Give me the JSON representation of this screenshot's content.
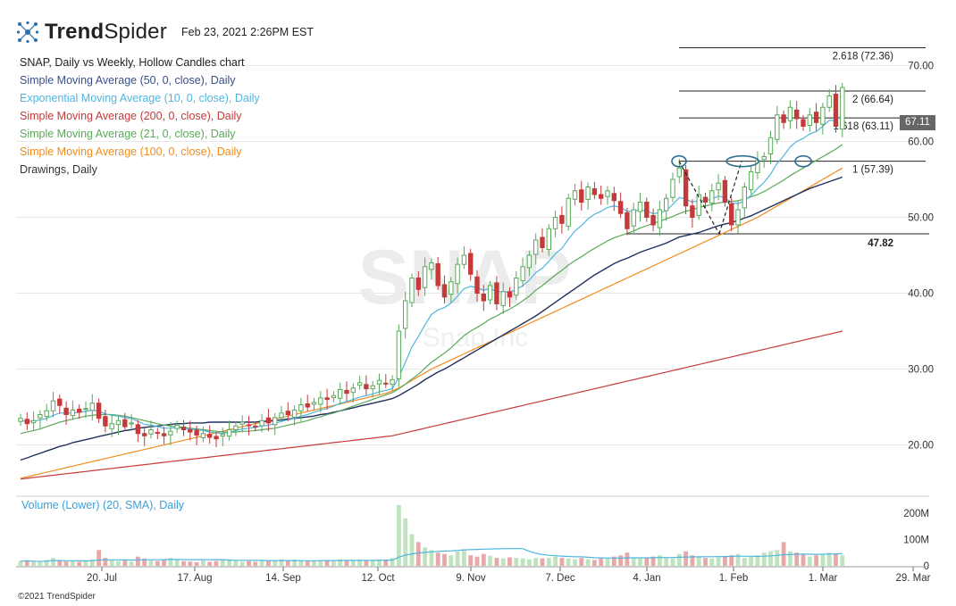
{
  "header": {
    "brand_bold": "Trend",
    "brand_light": "Spider",
    "timestamp": "Feb 23, 2021 2:26PM EST"
  },
  "legend": [
    {
      "text": "SNAP, Daily vs Weekly, Hollow Candles chart",
      "color": "#222222"
    },
    {
      "text": "Simple Moving Average (50, 0, close), Daily",
      "color": "#3a4f8a"
    },
    {
      "text": "Exponential Moving Average (10, 0, close), Daily",
      "color": "#4fb6e0"
    },
    {
      "text": "Simple Moving Average (200, 0, close), Daily",
      "color": "#c43a3a"
    },
    {
      "text": "Simple Moving Average (21, 0, close), Daily",
      "color": "#5aa85a"
    },
    {
      "text": "Simple Moving Average (100, 0, close), Daily",
      "color": "#f08c1e"
    },
    {
      "text": "Drawings, Daily",
      "color": "#333333"
    }
  ],
  "watermark": {
    "ticker": "SNAP",
    "name": "Snap Inc"
  },
  "volume_label": "Volume (Lower) (20, SMA), Daily",
  "copyright": "©2021 TrendSpider",
  "last_price": "67.11",
  "colors": {
    "up": "#5aa85a",
    "down": "#c43a3a",
    "sma50": "#1f2f5e",
    "ema10": "#4fb6e0",
    "sma200": "#c43a3a",
    "sma21": "#5aa85a",
    "sma100": "#f08c1e",
    "grid": "#e8e8e8"
  },
  "chart_data": {
    "type": "candlestick",
    "y_ticks": [
      "20.00",
      "30.00",
      "40.00",
      "50.00",
      "60.00",
      "70.00"
    ],
    "y_tick_values": [
      20,
      30,
      40,
      50,
      60,
      70
    ],
    "ylim": [
      15,
      75
    ],
    "x_ticks": [
      "20. Jul",
      "17. Aug",
      "14. Sep",
      "12. Oct",
      "9. Nov",
      "7. Dec",
      "4. Jan",
      "1. Feb",
      "1. Mar",
      "29. Mar"
    ],
    "volume_ticks": [
      "200M",
      "100M",
      "0"
    ],
    "volume_tick_values": [
      200,
      100,
      0
    ],
    "volume_ylim": [
      0,
      250
    ],
    "fib_levels": [
      {
        "label": "2.618 (72.36)",
        "value": 72.36
      },
      {
        "label": "2 (66.64)",
        "value": 66.64
      },
      {
        "label": "1.618 (63.11)",
        "value": 63.11
      },
      {
        "label": "1 (57.39)",
        "value": 57.39
      }
    ],
    "support_level": {
      "label": "47.82",
      "value": 47.82
    },
    "closes": [
      23.5,
      22.8,
      23.2,
      24.0,
      24.5,
      25.8,
      25.2,
      24.0,
      24.6,
      24.3,
      24.8,
      25.5,
      23.5,
      22.5,
      22.8,
      23.2,
      22.4,
      22.9,
      21.5,
      21.2,
      22.0,
      21.6,
      21.2,
      21.8,
      22.6,
      22.0,
      21.7,
      21.3,
      21.5,
      21.0,
      20.8,
      21.4,
      22.0,
      22.5,
      23.0,
      22.6,
      22.4,
      23.2,
      22.9,
      23.6,
      24.2,
      24.0,
      24.6,
      25.3,
      25.0,
      25.6,
      26.2,
      26.0,
      26.5,
      27.3,
      26.8,
      27.5,
      28.2,
      27.4,
      27.8,
      28.5,
      28.1,
      28.6,
      35.0,
      39.0,
      42.0,
      40.5,
      43.5,
      44.0,
      41.0,
      39.5,
      41.5,
      43.8,
      45.0,
      42.5,
      40.0,
      39.0,
      41.0,
      38.6,
      40.2,
      39.5,
      42.0,
      43.5,
      45.0,
      47.0,
      46.0,
      48.5,
      50.0,
      49.2,
      52.5,
      53.5,
      52.0,
      54.0,
      53.0,
      52.5,
      53.5,
      52.2,
      50.5,
      48.5,
      51.0,
      52.0,
      50.0,
      49.0,
      51.0,
      52.5,
      55.0,
      56.5,
      51.5,
      50.0,
      53.0,
      52.0,
      53.5,
      54.5,
      52.0,
      49.0,
      51.0,
      54.0,
      56.0,
      57.5,
      58.0,
      60.5,
      63.5,
      62.5,
      64.5,
      63.0,
      62.0,
      63.5,
      62.5,
      64.5,
      66.0,
      62.0,
      67.11
    ],
    "ema10": [
      23.2,
      23.1,
      23.1,
      23.3,
      23.5,
      23.9,
      24.2,
      24.2,
      24.2,
      24.3,
      24.4,
      24.6,
      24.4,
      24.1,
      23.9,
      23.8,
      23.6,
      23.5,
      23.1,
      22.7,
      22.6,
      22.4,
      22.2,
      22.2,
      22.3,
      22.2,
      22.1,
      22.0,
      21.9,
      21.7,
      21.6,
      21.5,
      21.7,
      21.9,
      22.1,
      22.2,
      22.3,
      22.5,
      22.6,
      22.8,
      23.1,
      23.3,
      23.5,
      23.8,
      24.0,
      24.3,
      24.6,
      24.8,
      25.1,
      25.5,
      25.7,
      26.0,
      26.3,
      26.5,
      26.7,
      27.0,
      27.2,
      27.4,
      28.9,
      30.9,
      32.9,
      34.3,
      35.8,
      37.2,
      37.8,
      38.1,
      38.7,
      39.6,
      40.6,
      40.9,
      40.7,
      40.4,
      40.6,
      40.2,
      40.2,
      40.1,
      40.5,
      41.0,
      41.7,
      42.7,
      43.3,
      44.2,
      45.2,
      45.9,
      47.1,
      48.2,
      48.9,
      49.8,
      50.4,
      50.8,
      51.3,
      51.5,
      51.3,
      50.8,
      50.8,
      51.0,
      50.8,
      50.5,
      50.6,
      50.9,
      51.7,
      52.6,
      52.4,
      52.0,
      52.2,
      52.2,
      52.4,
      52.8,
      52.6,
      51.9,
      51.8,
      52.2,
      52.9,
      53.8,
      54.6,
      55.7,
      57.1,
      58.1,
      59.3,
      60.0,
      60.4,
      61.0,
      61.3,
      62.0,
      62.8,
      62.7,
      63.6
    ],
    "sma21": [
      21.5,
      21.7,
      21.9,
      22.1,
      22.4,
      22.7,
      23.0,
      23.2,
      23.4,
      23.6,
      23.8,
      23.9,
      24.0,
      24.0,
      24.0,
      23.9,
      23.8,
      23.6,
      23.4,
      23.2,
      23.0,
      22.8,
      22.6,
      22.5,
      22.4,
      22.3,
      22.2,
      22.1,
      22.0,
      21.9,
      21.8,
      21.7,
      21.7,
      21.7,
      21.8,
      21.8,
      21.9,
      22.0,
      22.1,
      22.2,
      22.4,
      22.6,
      22.8,
      23.0,
      23.2,
      23.5,
      23.7,
      24.0,
      24.2,
      24.5,
      24.8,
      25.1,
      25.4,
      25.7,
      26.0,
      26.3,
      26.6,
      26.9,
      27.4,
      28.0,
      28.7,
      29.3,
      30.1,
      30.9,
      31.5,
      32.1,
      32.8,
      33.6,
      34.4,
      35.0,
      35.5,
      36.0,
      36.6,
      37.0,
      37.5,
      37.9,
      38.4,
      39.0,
      39.6,
      40.4,
      41.0,
      41.7,
      42.4,
      43.0,
      43.7,
      44.3,
      44.8,
      45.4,
      45.9,
      46.4,
      46.9,
      47.3,
      47.6,
      47.9,
      48.2,
      48.6,
      48.9,
      49.2,
      49.5,
      49.8,
      50.1,
      50.5,
      50.8,
      51.0,
      51.3,
      51.5,
      51.7,
      51.9,
      52.0,
      52.1,
      52.2,
      52.4,
      52.7,
      53.0,
      53.4,
      53.9,
      54.4,
      54.9,
      55.5,
      56.0,
      56.5,
      57.0,
      57.5,
      58.0,
      58.5,
      59.0,
      59.6
    ],
    "sma50": [
      18.0,
      18.3,
      18.6,
      18.9,
      19.2,
      19.5,
      19.8,
      20.0,
      20.3,
      20.5,
      20.7,
      20.9,
      21.1,
      21.3,
      21.5,
      21.7,
      21.9,
      22.0,
      22.2,
      22.3,
      22.4,
      22.5,
      22.6,
      22.7,
      22.8,
      22.8,
      22.9,
      22.9,
      22.9,
      23.0,
      23.0,
      23.0,
      23.0,
      23.0,
      23.0,
      23.0,
      23.0,
      23.1,
      23.1,
      23.2,
      23.3,
      23.4,
      23.5,
      23.6,
      23.7,
      23.8,
      24.0,
      24.1,
      24.3,
      24.5,
      24.7,
      24.9,
      25.1,
      25.3,
      25.5,
      25.7,
      25.9,
      26.1,
      26.5,
      27.0,
      27.5,
      28.0,
      28.6,
      29.1,
      29.6,
      30.0,
      30.5,
      31.0,
      31.5,
      32.0,
      32.5,
      33.0,
      33.5,
      34.0,
      34.5,
      35.0,
      35.5,
      36.0,
      36.5,
      37.0,
      37.6,
      38.2,
      38.8,
      39.4,
      40.0,
      40.6,
      41.2,
      41.8,
      42.4,
      42.9,
      43.4,
      43.9,
      44.3,
      44.6,
      45.0,
      45.4,
      45.7,
      46.0,
      46.3,
      46.6,
      47.0,
      47.4,
      47.6,
      47.8,
      48.0,
      48.3,
      48.6,
      48.9,
      49.1,
      49.3,
      49.6,
      49.9,
      50.2,
      50.6,
      51.0,
      51.4,
      51.8,
      52.2,
      52.6,
      53.0,
      53.4,
      53.8,
      54.1,
      54.4,
      54.7,
      55.0,
      55.3
    ],
    "sma100": [
      15.6,
      15.8,
      16.0,
      16.2,
      16.4,
      16.6,
      16.8,
      17.0,
      17.2,
      17.4,
      17.6,
      17.8,
      18.0,
      18.2,
      18.4,
      18.6,
      18.8,
      19.0,
      19.2,
      19.4,
      19.6,
      19.8,
      20.0,
      20.2,
      20.4,
      20.6,
      20.8,
      21.0,
      21.2,
      21.4,
      21.6,
      21.8,
      22.0,
      22.2,
      22.4,
      22.6,
      22.8,
      23.0,
      23.2,
      23.4,
      23.6,
      23.8,
      24.0,
      24.2,
      24.4,
      24.6,
      24.8,
      25.0,
      25.2,
      25.4,
      25.6,
      25.8,
      26.0,
      26.2,
      26.4,
      26.6,
      26.8,
      27.1,
      27.5,
      28.0,
      28.5,
      29.0,
      29.5,
      30.0,
      30.4,
      30.8,
      31.2,
      31.6,
      32.0,
      32.4,
      32.8,
      33.2,
      33.6,
      34.0,
      34.4,
      34.8,
      35.2,
      35.6,
      36.0,
      36.4,
      36.8,
      37.2,
      37.6,
      38.0,
      38.4,
      38.8,
      39.2,
      39.6,
      40.0,
      40.4,
      40.8,
      41.2,
      41.6,
      42.0,
      42.4,
      42.8,
      43.2,
      43.6,
      44.0,
      44.4,
      44.8,
      45.2,
      45.6,
      46.0,
      46.4,
      46.8,
      47.2,
      47.6,
      48.0,
      48.4,
      48.8,
      49.2,
      49.6,
      50.0,
      50.5,
      51.0,
      51.5,
      52.0,
      52.5,
      53.0,
      53.5,
      54.0,
      54.5,
      55.0,
      55.5,
      56.0,
      56.5
    ],
    "sma200": [
      15.5,
      15.6,
      15.7,
      15.8,
      15.9,
      16.0,
      16.1,
      16.2,
      16.3,
      16.4,
      16.5,
      16.6,
      16.7,
      16.8,
      16.9,
      17.0,
      17.1,
      17.2,
      17.3,
      17.4,
      17.5,
      17.6,
      17.7,
      17.8,
      17.9,
      18.0,
      18.1,
      18.2,
      18.3,
      18.4,
      18.5,
      18.6,
      18.7,
      18.8,
      18.9,
      19.0,
      19.1,
      19.2,
      19.3,
      19.4,
      19.5,
      19.6,
      19.7,
      19.8,
      19.9,
      20.0,
      20.1,
      20.2,
      20.3,
      20.4,
      20.5,
      20.6,
      20.7,
      20.8,
      20.9,
      21.0,
      21.1,
      21.2,
      21.4,
      21.6,
      21.8,
      22.0,
      22.2,
      22.4,
      22.6,
      22.8,
      23.0,
      23.2,
      23.4,
      23.6,
      23.8,
      24.0,
      24.2,
      24.4,
      24.6,
      24.8,
      25.0,
      25.2,
      25.4,
      25.6,
      25.8,
      26.0,
      26.2,
      26.4,
      26.6,
      26.8,
      27.0,
      27.2,
      27.4,
      27.6,
      27.8,
      28.0,
      28.2,
      28.4,
      28.6,
      28.8,
      29.0,
      29.2,
      29.4,
      29.6,
      29.8,
      30.0,
      30.2,
      30.4,
      30.6,
      30.8,
      31.0,
      31.2,
      31.4,
      31.6,
      31.8,
      32.0,
      32.2,
      32.4,
      32.6,
      32.8,
      33.0,
      33.2,
      33.4,
      33.6,
      33.8,
      34.0,
      34.2,
      34.4,
      34.6,
      34.8,
      35.0
    ],
    "volumes": [
      18,
      20,
      15,
      14,
      22,
      30,
      20,
      16,
      18,
      15,
      17,
      25,
      60,
      30,
      22,
      18,
      20,
      16,
      35,
      28,
      20,
      18,
      22,
      30,
      25,
      18,
      16,
      14,
      20,
      15,
      18,
      22,
      25,
      20,
      16,
      18,
      15,
      20,
      18,
      22,
      25,
      20,
      24,
      22,
      18,
      20,
      22,
      20,
      18,
      25,
      20,
      22,
      24,
      20,
      22,
      25,
      24,
      30,
      230,
      180,
      120,
      90,
      70,
      60,
      50,
      45,
      40,
      55,
      60,
      40,
      35,
      45,
      38,
      30,
      28,
      32,
      30,
      28,
      25,
      30,
      28,
      30,
      35,
      30,
      28,
      25,
      30,
      25,
      22,
      28,
      30,
      35,
      40,
      50,
      30,
      28,
      32,
      35,
      40,
      30,
      28,
      45,
      55,
      40,
      35,
      30,
      28,
      32,
      35,
      40,
      45,
      30,
      35,
      40,
      50,
      55,
      60,
      90,
      55,
      50,
      45,
      35,
      40,
      45,
      50,
      45,
      40
    ]
  }
}
